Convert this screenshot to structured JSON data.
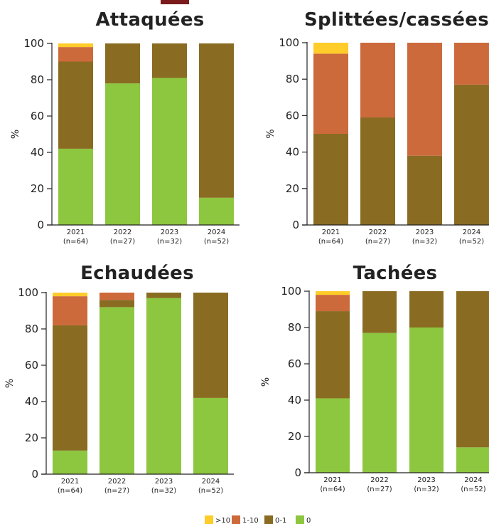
{
  "legend": [
    {
      "label": ">10",
      "color": "#FFCC29"
    },
    {
      "label": "1-10",
      "color": "#CC6A3C"
    },
    {
      "label": "0-1",
      "color": "#8A6B22"
    },
    {
      "label": "0",
      "color": "#8DC63F"
    }
  ],
  "chart_data": [
    {
      "type": "bar",
      "stacked": true,
      "title": "Attaquées",
      "ylabel": "%",
      "ylim": [
        0,
        100
      ],
      "yticks": [
        0,
        20,
        40,
        60,
        80,
        100
      ],
      "categories": [
        "2021",
        "2022",
        "2023",
        "2024"
      ],
      "category_sublabels": [
        "(n=64)",
        "(n=27)",
        "(n=32)",
        "(n=52)"
      ],
      "series": [
        {
          "name": "0",
          "values": [
            42,
            78,
            81,
            15
          ]
        },
        {
          "name": "0-1",
          "values": [
            48,
            22,
            19,
            85
          ]
        },
        {
          "name": "1-10",
          "values": [
            8,
            0,
            0,
            0
          ]
        },
        {
          "name": ">10",
          "values": [
            2,
            0,
            0,
            0
          ]
        }
      ]
    },
    {
      "type": "bar",
      "stacked": true,
      "title": "Splittées/cassées",
      "ylabel": "%",
      "ylim": [
        0,
        100
      ],
      "yticks": [
        0,
        20,
        40,
        60,
        80,
        100
      ],
      "categories": [
        "2021",
        "2022",
        "2023",
        "2024"
      ],
      "category_sublabels": [
        "(n=64)",
        "(n=27)",
        "(n=32)",
        "(n=52)"
      ],
      "series": [
        {
          "name": "0",
          "values": [
            0,
            0,
            0,
            0
          ]
        },
        {
          "name": "0-1",
          "values": [
            50,
            59,
            38,
            77
          ]
        },
        {
          "name": "1-10",
          "values": [
            44,
            41,
            62,
            23
          ]
        },
        {
          "name": ">10",
          "values": [
            6,
            0,
            0,
            0
          ]
        }
      ]
    },
    {
      "type": "bar",
      "stacked": true,
      "title": "Echaudées",
      "ylabel": "%",
      "ylim": [
        0,
        100
      ],
      "yticks": [
        0,
        20,
        40,
        60,
        80,
        100
      ],
      "categories": [
        "2021",
        "2022",
        "2023",
        "2024"
      ],
      "category_sublabels": [
        "(n=64)",
        "(n=27)",
        "(n=32)",
        "(n=52)"
      ],
      "series": [
        {
          "name": "0",
          "values": [
            13,
            92,
            97,
            42
          ]
        },
        {
          "name": "0-1",
          "values": [
            69,
            4,
            3,
            58
          ]
        },
        {
          "name": "1-10",
          "values": [
            16,
            4,
            0,
            0
          ]
        },
        {
          "name": ">10",
          "values": [
            2,
            0,
            0,
            0
          ]
        }
      ]
    },
    {
      "type": "bar",
      "stacked": true,
      "title": "Tachées",
      "ylabel": "%",
      "ylim": [
        0,
        100
      ],
      "yticks": [
        0,
        20,
        40,
        60,
        80,
        100
      ],
      "categories": [
        "2021",
        "2022",
        "2023",
        "2024"
      ],
      "category_sublabels": [
        "(n=64)",
        "(n=27)",
        "(n=32)",
        "(n=52)"
      ],
      "series": [
        {
          "name": "0",
          "values": [
            41,
            77,
            80,
            14
          ]
        },
        {
          "name": "0-1",
          "values": [
            48,
            23,
            20,
            86
          ]
        },
        {
          "name": "1-10",
          "values": [
            9,
            0,
            0,
            0
          ]
        },
        {
          "name": ">10",
          "values": [
            2,
            0,
            0,
            0
          ]
        }
      ]
    }
  ]
}
